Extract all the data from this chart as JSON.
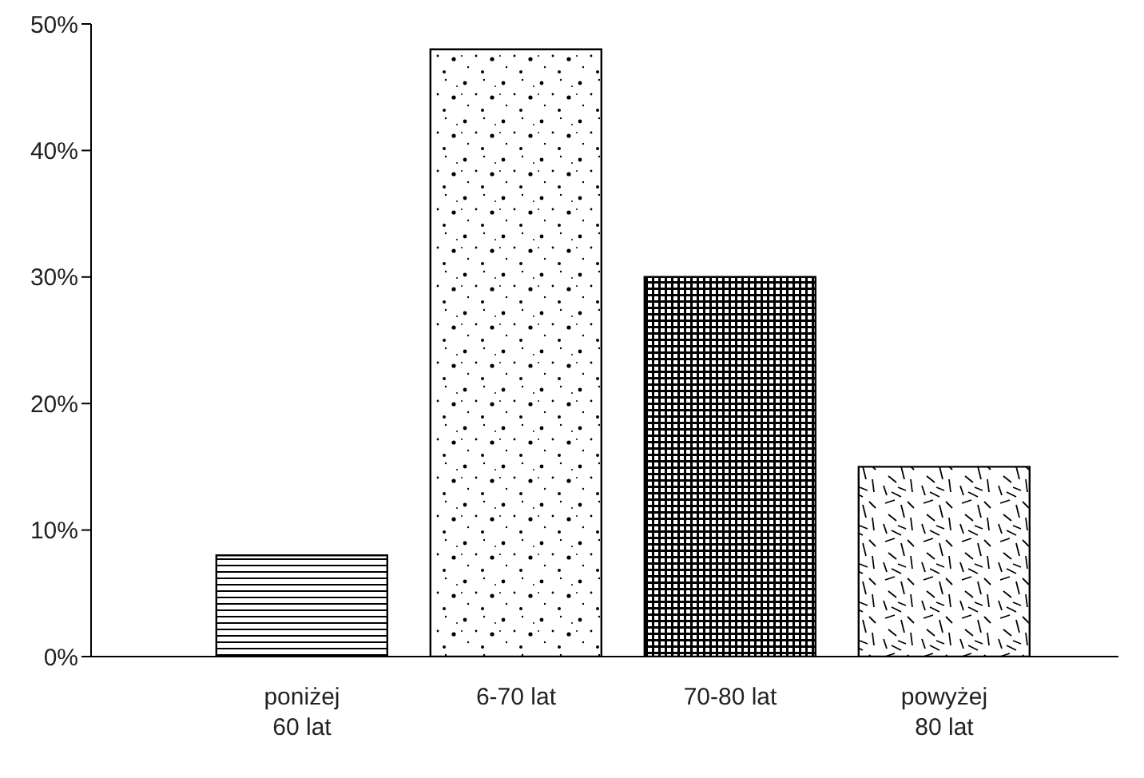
{
  "chart_data": {
    "type": "bar",
    "categories": [
      "poniżej 60 lat",
      "6-70 lat",
      "70-80 lat",
      "powyżej 80 lat"
    ],
    "values": [
      8,
      48,
      30,
      15
    ],
    "color": "#000000",
    "ylim": [
      0,
      50
    ],
    "yticks": [
      {
        "value": 0,
        "label": "0%"
      },
      {
        "value": 10,
        "label": "10%"
      },
      {
        "value": 20,
        "label": "20%"
      },
      {
        "value": 30,
        "label": "30%"
      },
      {
        "value": 40,
        "label": "40%"
      },
      {
        "value": 50,
        "label": "50%"
      }
    ],
    "grid": false,
    "legend": false
  }
}
